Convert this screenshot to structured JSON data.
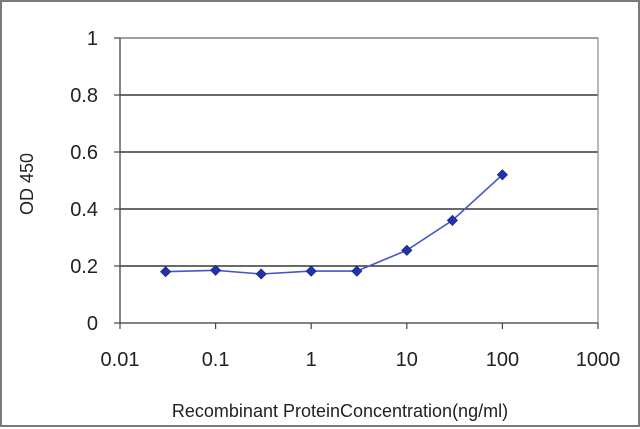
{
  "chart_data": {
    "type": "line",
    "title": "",
    "xlabel": "Recombinant ProteinConcentration(ng/ml)",
    "ylabel": "OD 450",
    "xscale": "log",
    "xlim": [
      0.01,
      1000
    ],
    "ylim": [
      0,
      1
    ],
    "x_ticks": [
      "0.01",
      "0.1",
      "1",
      "10",
      "100",
      "1000"
    ],
    "y_ticks": [
      "0",
      "0.2",
      "0.4",
      "0.6",
      "0.8",
      "1"
    ],
    "grid": "horizontal",
    "series": [
      {
        "x": [
          0.03,
          0.1,
          0.3,
          1,
          3,
          10,
          30,
          100
        ],
        "y": [
          0.18,
          0.185,
          0.172,
          0.182,
          0.182,
          0.255,
          0.36,
          0.52
        ],
        "color": "#2233aa",
        "marker": "diamond"
      }
    ]
  }
}
